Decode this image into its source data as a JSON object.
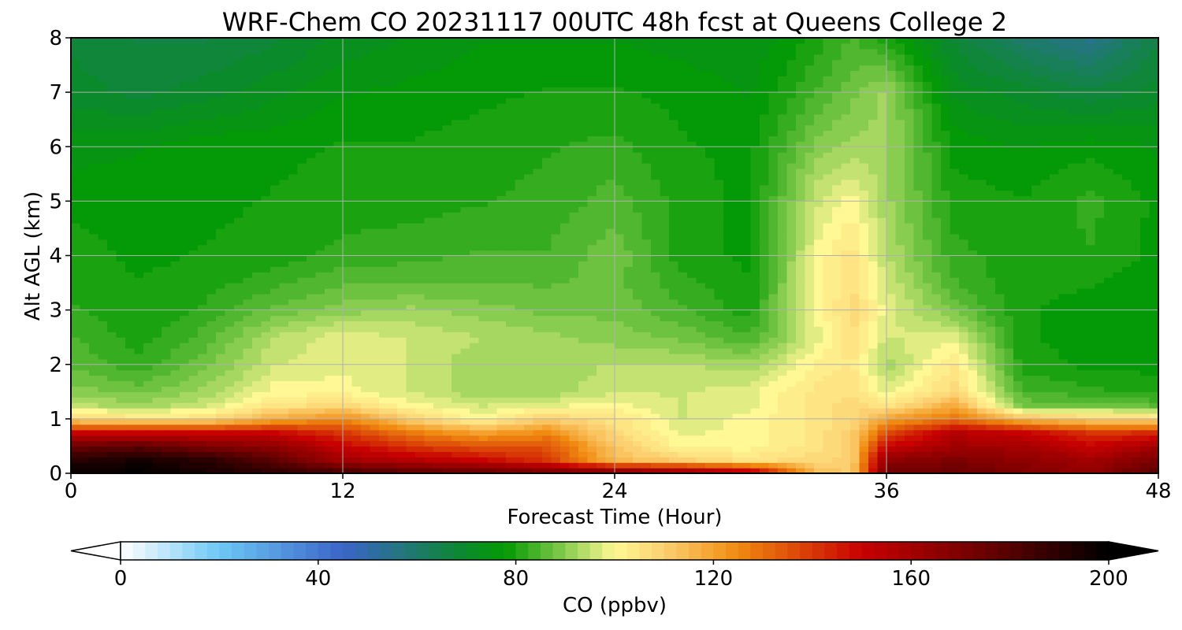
{
  "chart_data": {
    "type": "heatmap",
    "title": "WRF-Chem CO  20231117 00UTC 48h fcst at Queens College 2",
    "xlabel": "Forecast Time (Hour)",
    "ylabel": "Alt AGL (km)",
    "xlim": [
      0,
      48
    ],
    "ylim": [
      0,
      8
    ],
    "xticks": [
      0,
      12,
      24,
      36,
      48
    ],
    "yticks": [
      0,
      1,
      2,
      3,
      4,
      5,
      6,
      7,
      8
    ],
    "grid": true,
    "colorbar": {
      "label": "CO  (ppbv)",
      "orientation": "horizontal",
      "placement": "bottom",
      "extend": "both",
      "range": [
        0,
        200
      ],
      "ticks": [
        0,
        40,
        80,
        120,
        160,
        200
      ],
      "stops": [
        {
          "value": 0,
          "color": "#ffffff"
        },
        {
          "value": 20,
          "color": "#6ec8f5"
        },
        {
          "value": 45,
          "color": "#3a64c8"
        },
        {
          "value": 60,
          "color": "#1e7a6a"
        },
        {
          "value": 70,
          "color": "#0a8a2a"
        },
        {
          "value": 78,
          "color": "#049a04"
        },
        {
          "value": 90,
          "color": "#88cc50"
        },
        {
          "value": 100,
          "color": "#fff894"
        },
        {
          "value": 110,
          "color": "#fcd070"
        },
        {
          "value": 125,
          "color": "#f08a10"
        },
        {
          "value": 150,
          "color": "#c80000"
        },
        {
          "value": 175,
          "color": "#6a0000"
        },
        {
          "value": 200,
          "color": "#000000"
        }
      ]
    },
    "x": [
      0,
      3,
      6,
      9,
      12,
      15,
      18,
      21,
      24,
      27,
      30,
      33,
      34.5,
      36,
      39,
      42,
      45,
      48
    ],
    "y": [
      0,
      0.25,
      0.5,
      0.75,
      1,
      1.25,
      1.5,
      2,
      2.5,
      3,
      3.5,
      4,
      5,
      6,
      7,
      8
    ],
    "z": [
      [
        200,
        200,
        195,
        190,
        185,
        180,
        178,
        175,
        175,
        170,
        160,
        115,
        110,
        175,
        175,
        170,
        165,
        180
      ],
      [
        190,
        195,
        190,
        178,
        160,
        155,
        150,
        140,
        115,
        110,
        105,
        108,
        110,
        165,
        170,
        165,
        160,
        170
      ],
      [
        175,
        178,
        170,
        165,
        150,
        140,
        135,
        135,
        112,
        100,
        100,
        105,
        110,
        150,
        160,
        160,
        150,
        160
      ],
      [
        150,
        150,
        150,
        150,
        140,
        128,
        120,
        125,
        108,
        98,
        100,
        105,
        110,
        135,
        155,
        150,
        140,
        142
      ],
      [
        108,
        106,
        106,
        118,
        125,
        110,
        100,
        110,
        105,
        96,
        100,
        105,
        108,
        120,
        130,
        115,
        110,
        108
      ],
      [
        95,
        92,
        96,
        105,
        108,
        100,
        96,
        98,
        100,
        96,
        98,
        105,
        108,
        105,
        118,
        88,
        88,
        86
      ],
      [
        90,
        88,
        92,
        100,
        100,
        96,
        92,
        92,
        96,
        96,
        98,
        105,
        106,
        98,
        108,
        84,
        82,
        80
      ],
      [
        86,
        82,
        88,
        96,
        98,
        96,
        92,
        92,
        94,
        94,
        92,
        102,
        104,
        92,
        104,
        80,
        78,
        78
      ],
      [
        84,
        80,
        85,
        94,
        98,
        96,
        94,
        92,
        90,
        88,
        84,
        98,
        106,
        96,
        98,
        79,
        78,
        77
      ],
      [
        82,
        79,
        82,
        87,
        90,
        92,
        90,
        88,
        88,
        84,
        80,
        100,
        108,
        98,
        88,
        79,
        78,
        77
      ],
      [
        80,
        79,
        80,
        83,
        86,
        86,
        86,
        86,
        87,
        82,
        79,
        100,
        106,
        96,
        84,
        79,
        79,
        77
      ],
      [
        80,
        78,
        79,
        80,
        82,
        83,
        84,
        84,
        88,
        80,
        78,
        100,
        105,
        94,
        82,
        80,
        81,
        78
      ],
      [
        78,
        78,
        78,
        79,
        80,
        80,
        81,
        82,
        85,
        80,
        78,
        96,
        100,
        92,
        80,
        79,
        82,
        78
      ],
      [
        75,
        76,
        78,
        78,
        79,
        79,
        80,
        81,
        82,
        79,
        78,
        90,
        92,
        92,
        78,
        76,
        78,
        76
      ],
      [
        70,
        68,
        70,
        73,
        76,
        77,
        78,
        79,
        79,
        78,
        76,
        84,
        88,
        92,
        73,
        70,
        67,
        70
      ],
      [
        68,
        66,
        66,
        68,
        72,
        74,
        76,
        76,
        76,
        75,
        74,
        80,
        84,
        80,
        68,
        60,
        55,
        66
      ]
    ]
  }
}
